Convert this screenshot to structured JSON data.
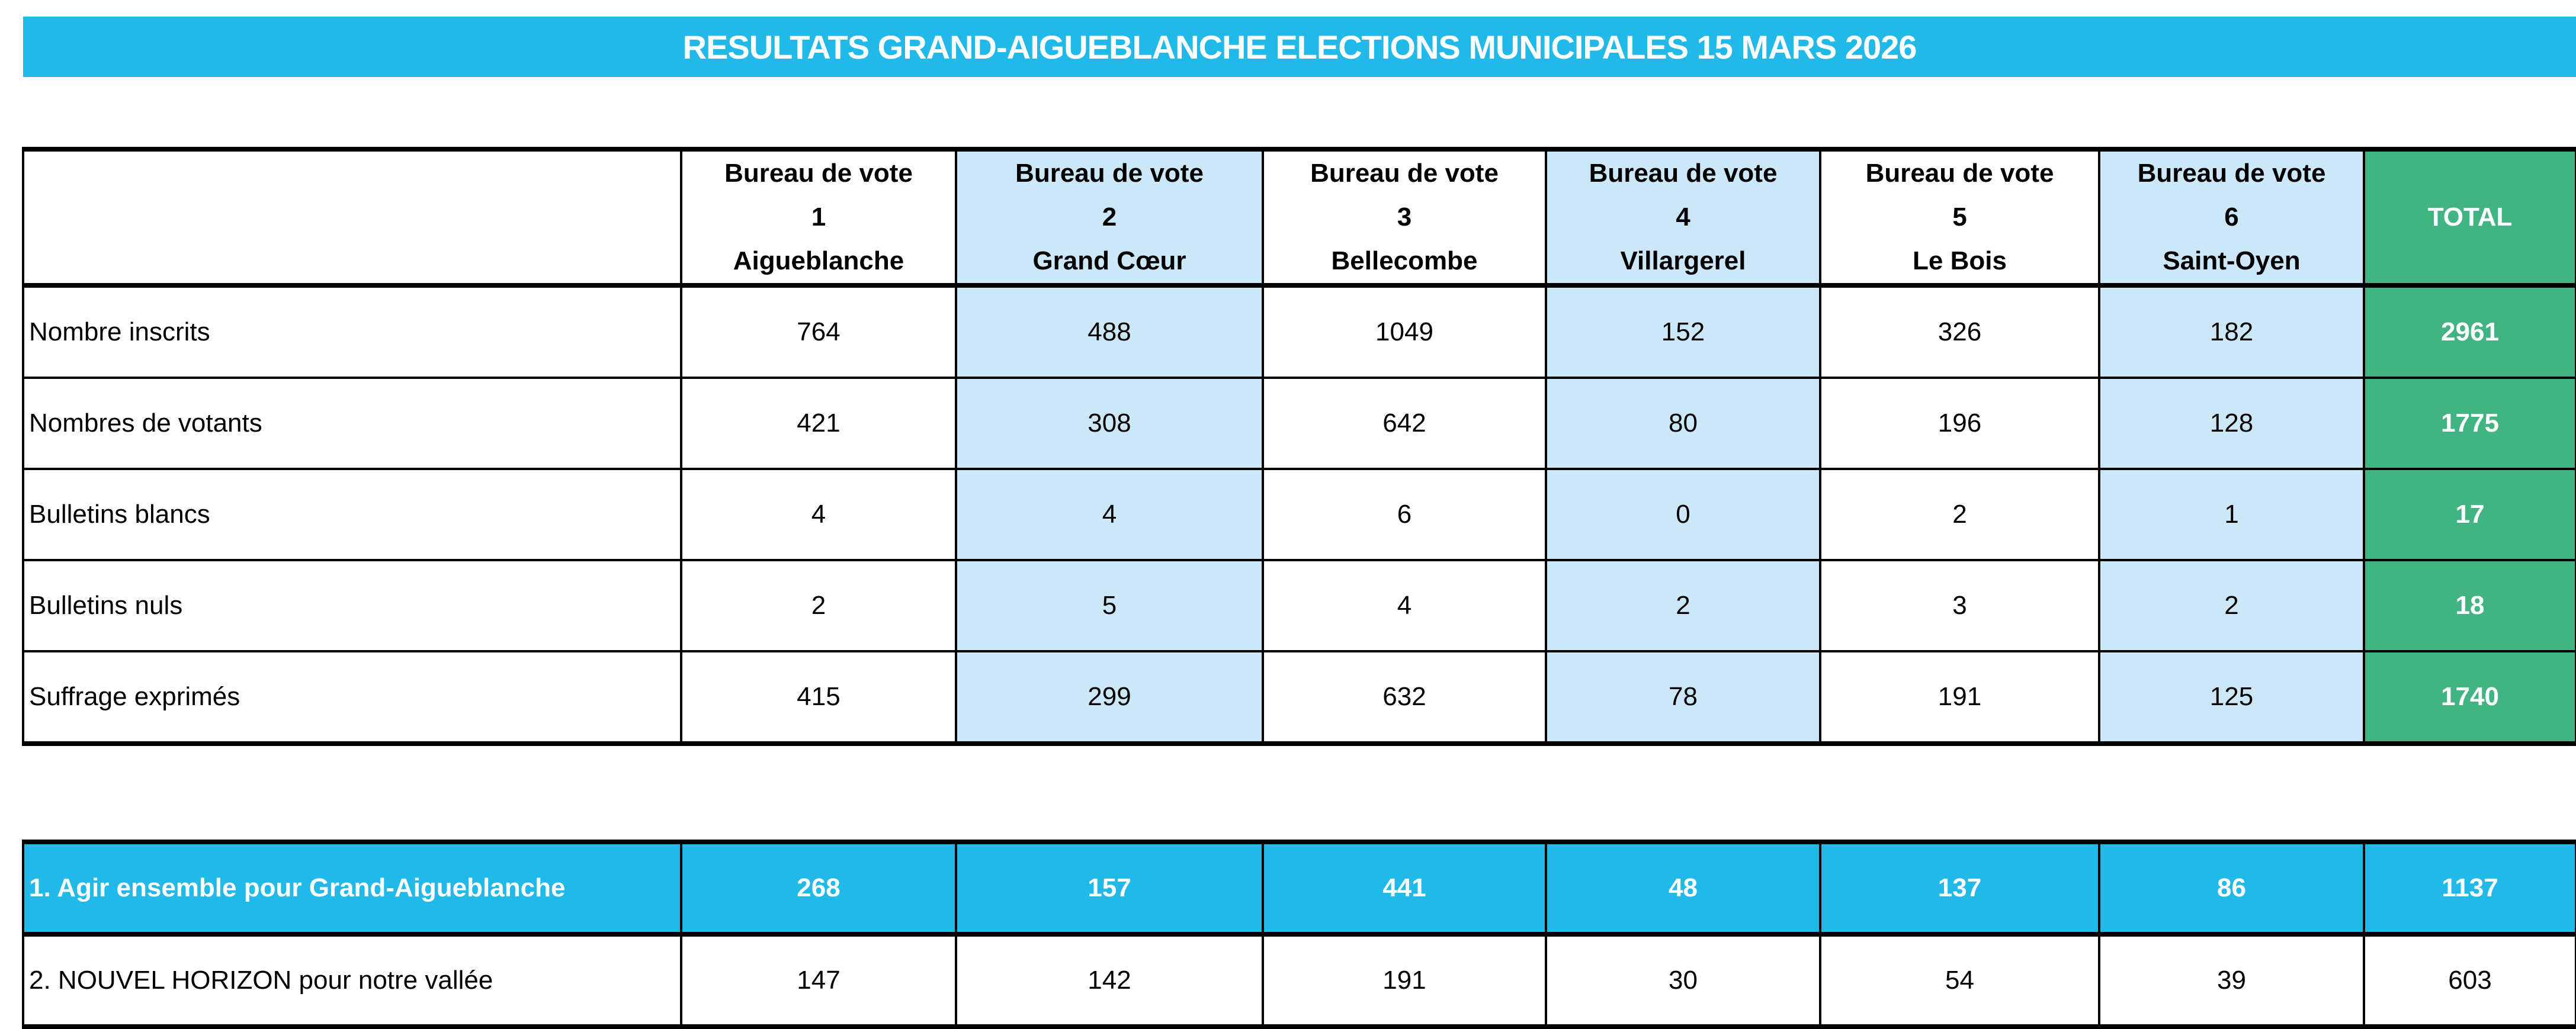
{
  "title": "RESULTATS GRAND-AIGUEBLANCHE ELECTIONS MUNICIPALES 15 MARS 2026",
  "colors": {
    "accent": "#20b9e8",
    "alt_column": "#cce8f8",
    "total_column": "#42b483"
  },
  "bureaux": [
    {
      "label": "Bureau de vote",
      "number": "1",
      "name": "Aigueblanche"
    },
    {
      "label": "Bureau de vote",
      "number": "2",
      "name": "Grand Cœur"
    },
    {
      "label": "Bureau de vote",
      "number": "3",
      "name": "Bellecombe"
    },
    {
      "label": "Bureau de vote",
      "number": "4",
      "name": "Villargerel"
    },
    {
      "label": "Bureau de vote",
      "number": "5",
      "name": "Le Bois"
    },
    {
      "label": "Bureau de vote",
      "number": "6",
      "name": "Saint-Oyen"
    }
  ],
  "total_label": "TOTAL",
  "stats": [
    {
      "label": "Nombre inscrits",
      "values": [
        "764",
        "488",
        "1049",
        "152",
        "326",
        "182"
      ],
      "total": "2961"
    },
    {
      "label": "Nombres de votants",
      "values": [
        "421",
        "308",
        "642",
        "80",
        "196",
        "128"
      ],
      "total": "1775"
    },
    {
      "label": "Bulletins blancs",
      "values": [
        "4",
        "4",
        "6",
        "0",
        "2",
        "1"
      ],
      "total": "17"
    },
    {
      "label": "Bulletins nuls",
      "values": [
        "2",
        "5",
        "4",
        "2",
        "3",
        "2"
      ],
      "total": "18"
    },
    {
      "label": "Suffrage exprimés",
      "values": [
        "415",
        "299",
        "632",
        "78",
        "191",
        "125"
      ],
      "total": "1740"
    }
  ],
  "lists": [
    {
      "label": "1. Agir ensemble pour Grand-Aigueblanche",
      "values": [
        "268",
        "157",
        "441",
        "48",
        "137",
        "86"
      ],
      "total": "1137",
      "winner": true
    },
    {
      "label": "2. NOUVEL HORIZON pour notre vallée",
      "values": [
        "147",
        "142",
        "191",
        "30",
        "54",
        "39"
      ],
      "total": "603",
      "winner": false
    }
  ]
}
